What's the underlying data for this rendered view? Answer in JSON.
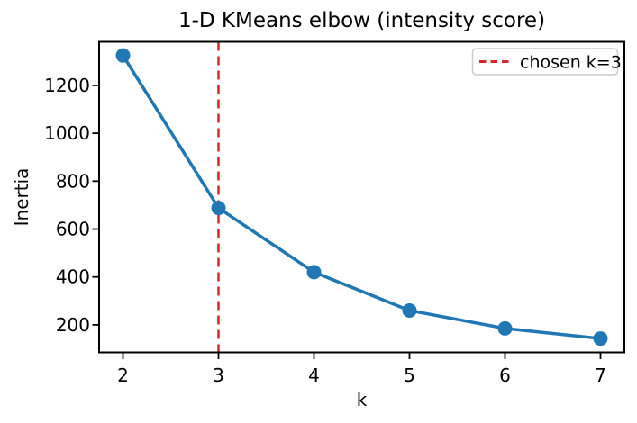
{
  "figure": {
    "background": "#ffffff"
  },
  "chart_data": {
    "type": "line",
    "title": "1-D KMeans elbow (intensity score)",
    "xlabel": "k",
    "ylabel": "Inertia",
    "x": [
      2,
      3,
      4,
      5,
      6,
      7
    ],
    "series": [
      {
        "name": "inertia",
        "values": [
          1325,
          688,
          420,
          260,
          185,
          143
        ],
        "color": "#1f77b4",
        "marker": "circle",
        "line_style": "solid"
      }
    ],
    "xticks": [
      2,
      3,
      4,
      5,
      6,
      7
    ],
    "yticks": [
      200,
      400,
      600,
      800,
      1000,
      1200
    ],
    "xlim": [
      1.75,
      7.25
    ],
    "ylim": [
      85,
      1382
    ],
    "grid": false,
    "annotations": {
      "vline": {
        "x": 3,
        "color": "#d62728",
        "style": "dashed"
      }
    },
    "legend": {
      "position": "upper right",
      "entries": [
        {
          "label": "chosen k=3",
          "color": "#d62728",
          "style": "dashed"
        }
      ]
    },
    "colors": {
      "line": "#1f77b4",
      "vline": "#d62728",
      "legend_border": "#cccccc",
      "spine": "#000000"
    }
  }
}
